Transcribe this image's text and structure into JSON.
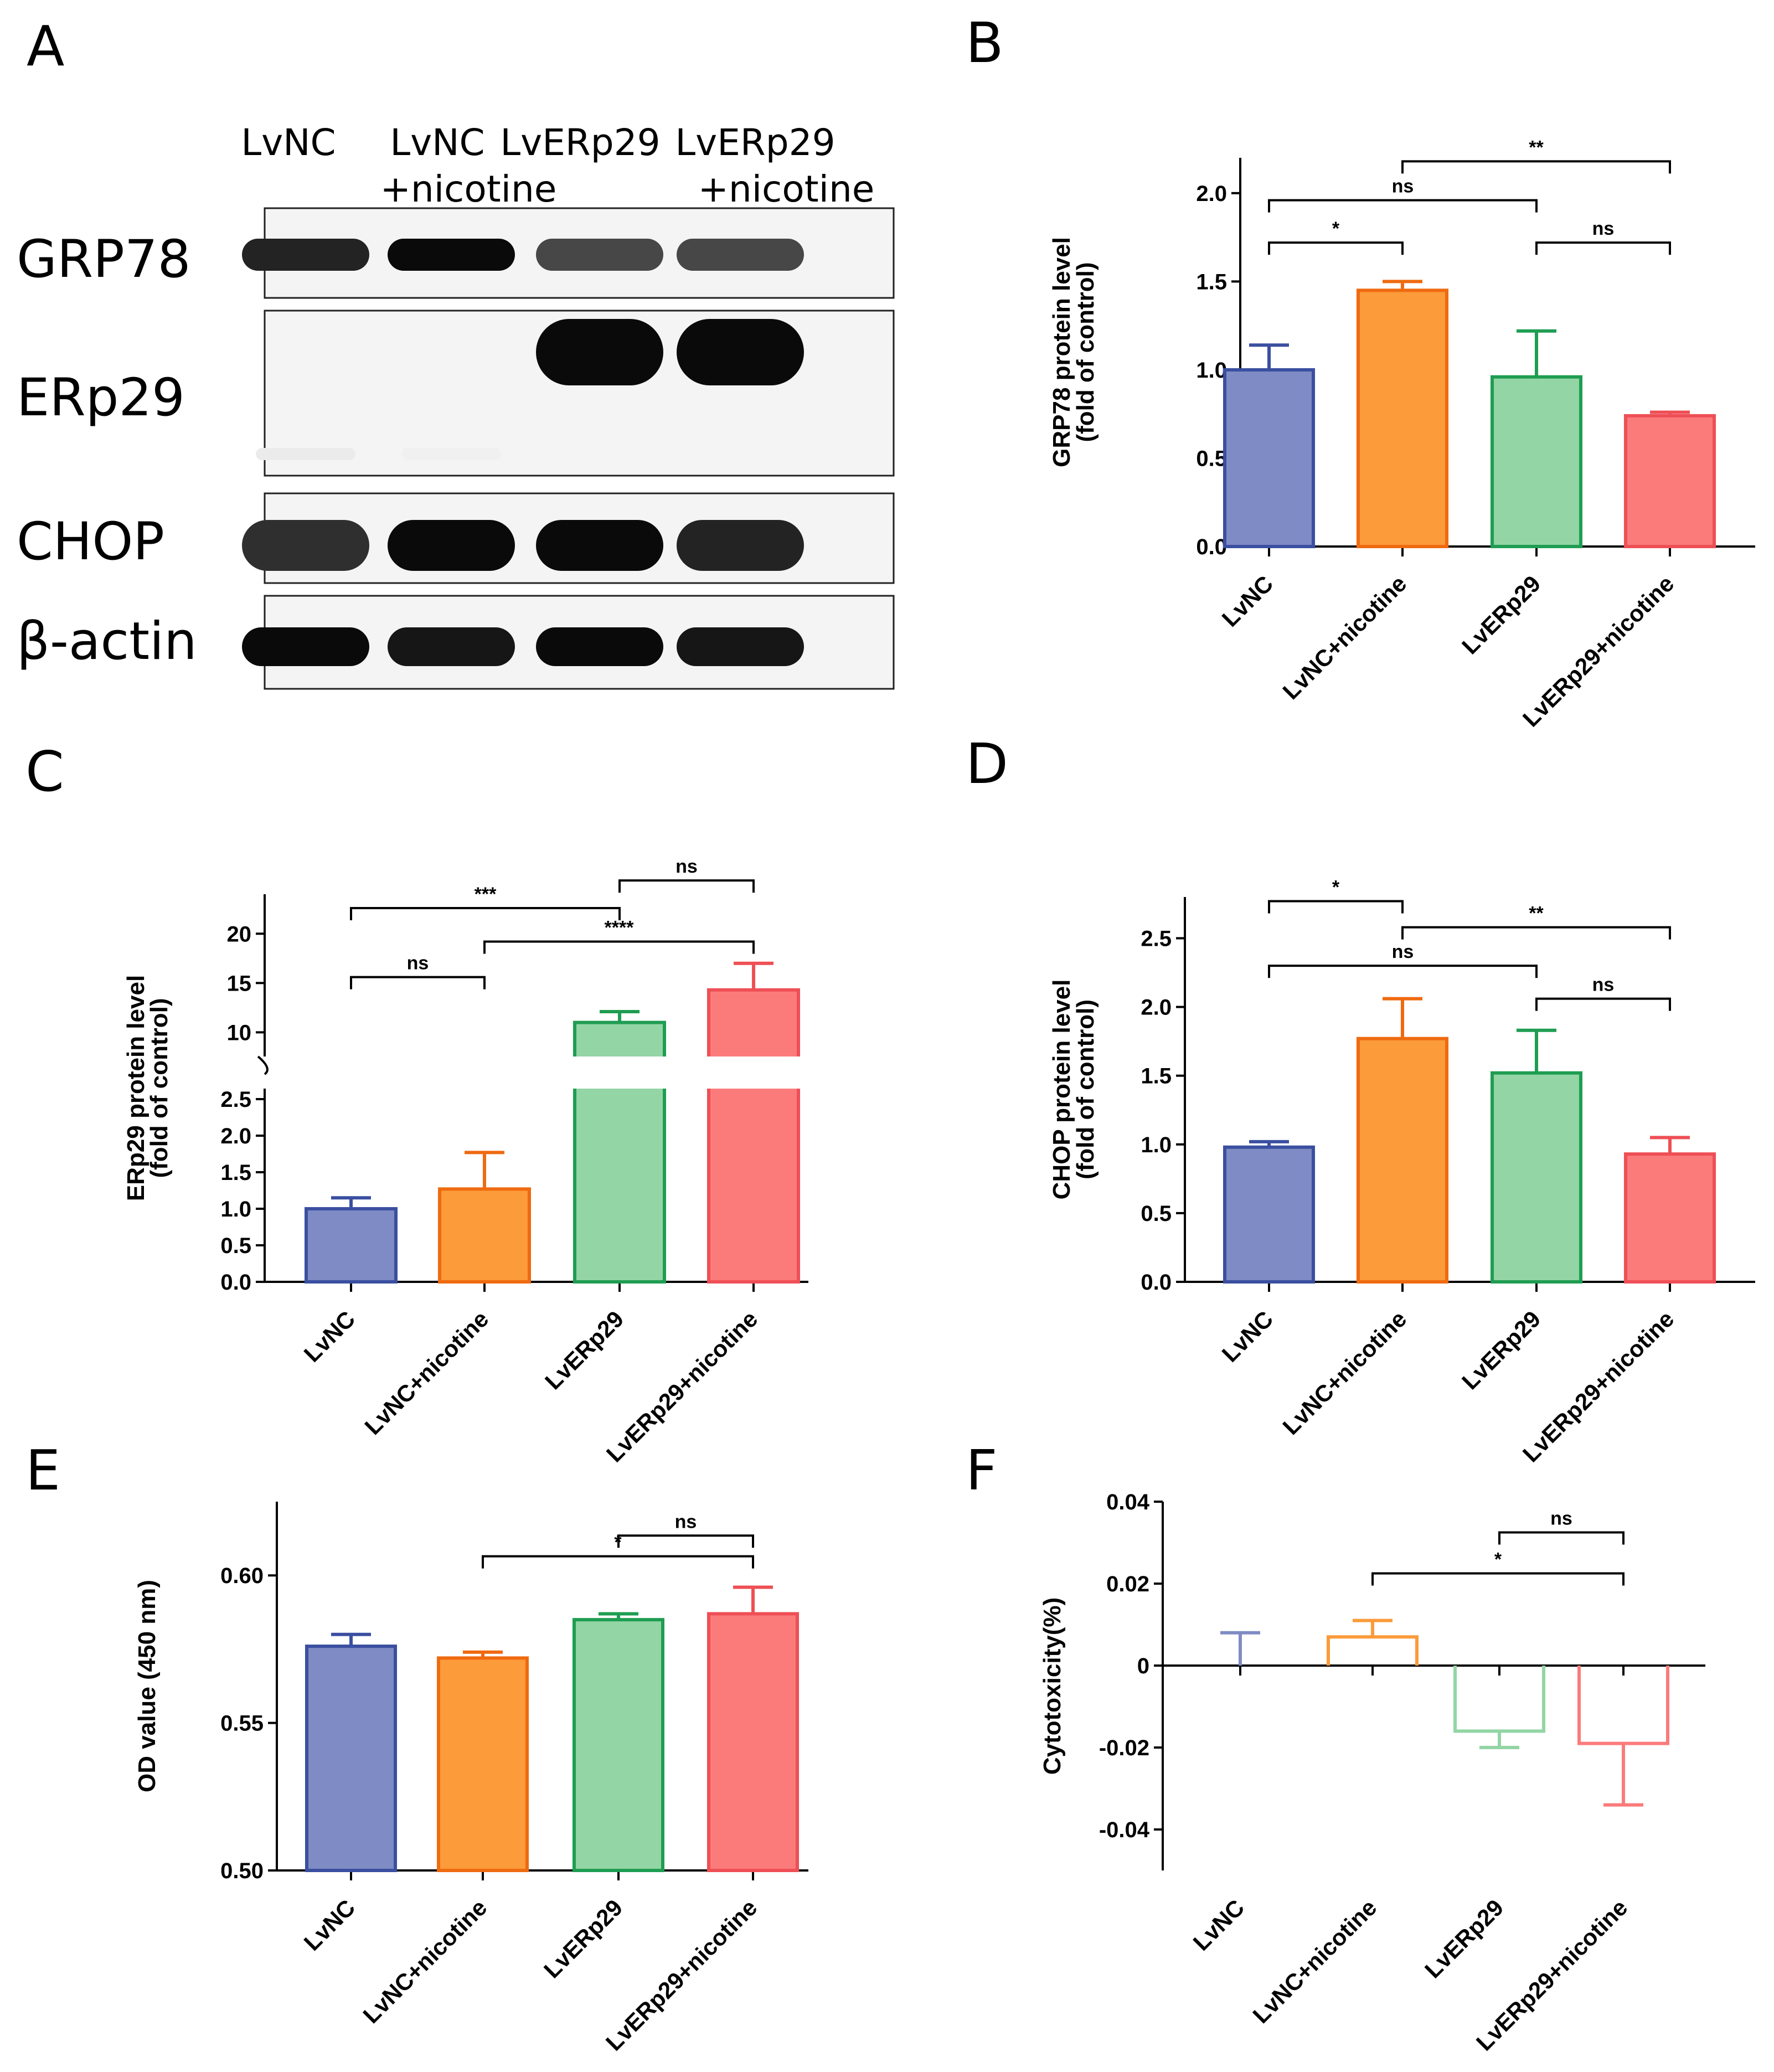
{
  "colors": {
    "LvNC": {
      "fill": "#7f8bc4",
      "stroke": "#3a4fa0"
    },
    "LvNC+nicotine": {
      "fill": "#fb9b3a",
      "stroke": "#ef6a10"
    },
    "LvERp29": {
      "fill": "#93d5a5",
      "stroke": "#1f9d52"
    },
    "LvERp29+nicotine": {
      "fill": "#fb7b7b",
      "stroke": "#ee4f55"
    }
  },
  "blot": {
    "panel_label": "A",
    "lanes": [
      {
        "line1": "LvNC",
        "line2": ""
      },
      {
        "line1": "LvNC",
        "line2": "+nicotine"
      },
      {
        "line1": "LvERp29",
        "line2": ""
      },
      {
        "line1": "LvERp29",
        "line2": "+nicotine"
      }
    ],
    "rows": [
      {
        "label": "GRP78",
        "intensity": [
          0.9,
          1.0,
          0.75,
          0.75
        ]
      },
      {
        "label": "ERp29",
        "intensity": [
          0.08,
          0.06,
          1.0,
          1.0
        ]
      },
      {
        "label": "CHOP",
        "intensity": [
          0.85,
          1.0,
          1.0,
          0.9
        ]
      },
      {
        "label": "β-actin",
        "intensity": [
          1.0,
          0.95,
          1.0,
          0.95
        ]
      }
    ]
  },
  "chart_data": [
    {
      "panel": "B",
      "type": "bar",
      "categories": [
        "LvNC",
        "LvNC+nicotine",
        "LvERp29",
        "LvERp29+nicotine"
      ],
      "values": [
        1.0,
        1.45,
        0.96,
        0.74
      ],
      "errors": [
        0.14,
        0.05,
        0.26,
        0.02
      ],
      "ylabel_line1": "GRP78 protein level",
      "ylabel_line2": "(fold of control)",
      "ylim": [
        0,
        2.2
      ],
      "yticks": [
        "0.0",
        "0.5",
        "1.0",
        "1.5",
        "2.0"
      ],
      "yticks_values": [
        0,
        0.5,
        1.0,
        1.5,
        2.0
      ],
      "significance": [
        {
          "from": 0,
          "to": 1,
          "level": 1.72,
          "text": "*"
        },
        {
          "from": 0,
          "to": 2,
          "level": 1.96,
          "text": "ns"
        },
        {
          "from": 2,
          "to": 3,
          "level": 1.72,
          "text": "ns"
        },
        {
          "from": 1,
          "to": 3,
          "level": 2.18,
          "text": "**"
        }
      ]
    },
    {
      "panel": "C",
      "type": "bar",
      "broken_axis": true,
      "categories": [
        "LvNC",
        "LvNC+nicotine",
        "LvERp29",
        "LvERp29+nicotine"
      ],
      "values": [
        1.0,
        1.27,
        11.0,
        14.3
      ],
      "errors": [
        0.15,
        0.5,
        1.1,
        2.7
      ],
      "ylabel_line1": "ERp29 protein level",
      "ylabel_line2": "(fold of control)",
      "lower_range": [
        0,
        2.5
      ],
      "upper_range": [
        8,
        24
      ],
      "lower_ticks": [
        "0.0",
        "0.5",
        "1.0",
        "1.5",
        "2.0",
        "2.5"
      ],
      "lower_ticks_values": [
        0,
        0.5,
        1.0,
        1.5,
        2.0,
        2.5
      ],
      "upper_ticks": [
        "10",
        "15",
        "20"
      ],
      "upper_ticks_values": [
        10,
        15,
        20
      ],
      "significance": [
        {
          "from": 0,
          "to": 1,
          "level": 15.6,
          "text": "ns"
        },
        {
          "from": 0,
          "to": 2,
          "level": 22.6,
          "text": "***"
        },
        {
          "from": 1,
          "to": 3,
          "level": 19.2,
          "text": "****"
        },
        {
          "from": 2,
          "to": 3,
          "level": 25.4,
          "text": "ns"
        }
      ]
    },
    {
      "panel": "D",
      "type": "bar",
      "categories": [
        "LvNC",
        "LvNC+nicotine",
        "LvERp29",
        "LvERp29+nicotine"
      ],
      "values": [
        0.98,
        1.77,
        1.52,
        0.93
      ],
      "errors": [
        0.04,
        0.29,
        0.31,
        0.12
      ],
      "ylabel_line1": "CHOP protein level",
      "ylabel_line2": "(fold of control)",
      "ylim": [
        0,
        2.8
      ],
      "yticks": [
        "0.0",
        "0.5",
        "1.0",
        "1.5",
        "2.0",
        "2.5"
      ],
      "yticks_values": [
        0,
        0.5,
        1.0,
        1.5,
        2.0,
        2.5
      ],
      "significance": [
        {
          "from": 0,
          "to": 1,
          "level": 2.77,
          "text": "*"
        },
        {
          "from": 1,
          "to": 3,
          "level": 2.58,
          "text": "**"
        },
        {
          "from": 0,
          "to": 2,
          "level": 2.3,
          "text": "ns"
        },
        {
          "from": 2,
          "to": 3,
          "level": 2.06,
          "text": "ns"
        }
      ]
    },
    {
      "panel": "E",
      "type": "bar",
      "categories": [
        "LvNC",
        "LvNC+nicotine",
        "LvERp29",
        "LvERp29+nicotine"
      ],
      "values": [
        0.576,
        0.572,
        0.585,
        0.587
      ],
      "errors": [
        0.004,
        0.002,
        0.002,
        0.009
      ],
      "ylabel_line1": "OD value (450 nm)",
      "ylabel_line2": "",
      "ylim": [
        0.5,
        0.625
      ],
      "yticks": [
        "0.50",
        "0.55",
        "0.60"
      ],
      "yticks_values": [
        0.5,
        0.55,
        0.6
      ],
      "significance": [
        {
          "from": 1,
          "to": 3,
          "level": 0.6065,
          "text": "*"
        },
        {
          "from": 2,
          "to": 3,
          "level": 0.6135,
          "text": "ns"
        }
      ]
    },
    {
      "panel": "F",
      "type": "bar",
      "open_bars": true,
      "categories": [
        "LvNC",
        "LvNC+nicotine",
        "LvERp29",
        "LvERp29+nicotine"
      ],
      "values": [
        0.0,
        0.007,
        -0.016,
        -0.019
      ],
      "errors": [
        0.008,
        0.004,
        0.004,
        0.015
      ],
      "ylabel_line1": "Cytotoxicity(%)",
      "ylabel_line2": "",
      "ylim": [
        -0.05,
        0.04
      ],
      "yticks": [
        "-0.04",
        "-0.02",
        "0",
        "0.02",
        "0.04"
      ],
      "yticks_values": [
        -0.04,
        -0.02,
        0,
        0.02,
        0.04
      ],
      "significance": [
        {
          "from": 1,
          "to": 3,
          "level": 0.0225,
          "text": "*"
        },
        {
          "from": 2,
          "to": 3,
          "level": 0.0325,
          "text": "ns"
        }
      ]
    }
  ]
}
